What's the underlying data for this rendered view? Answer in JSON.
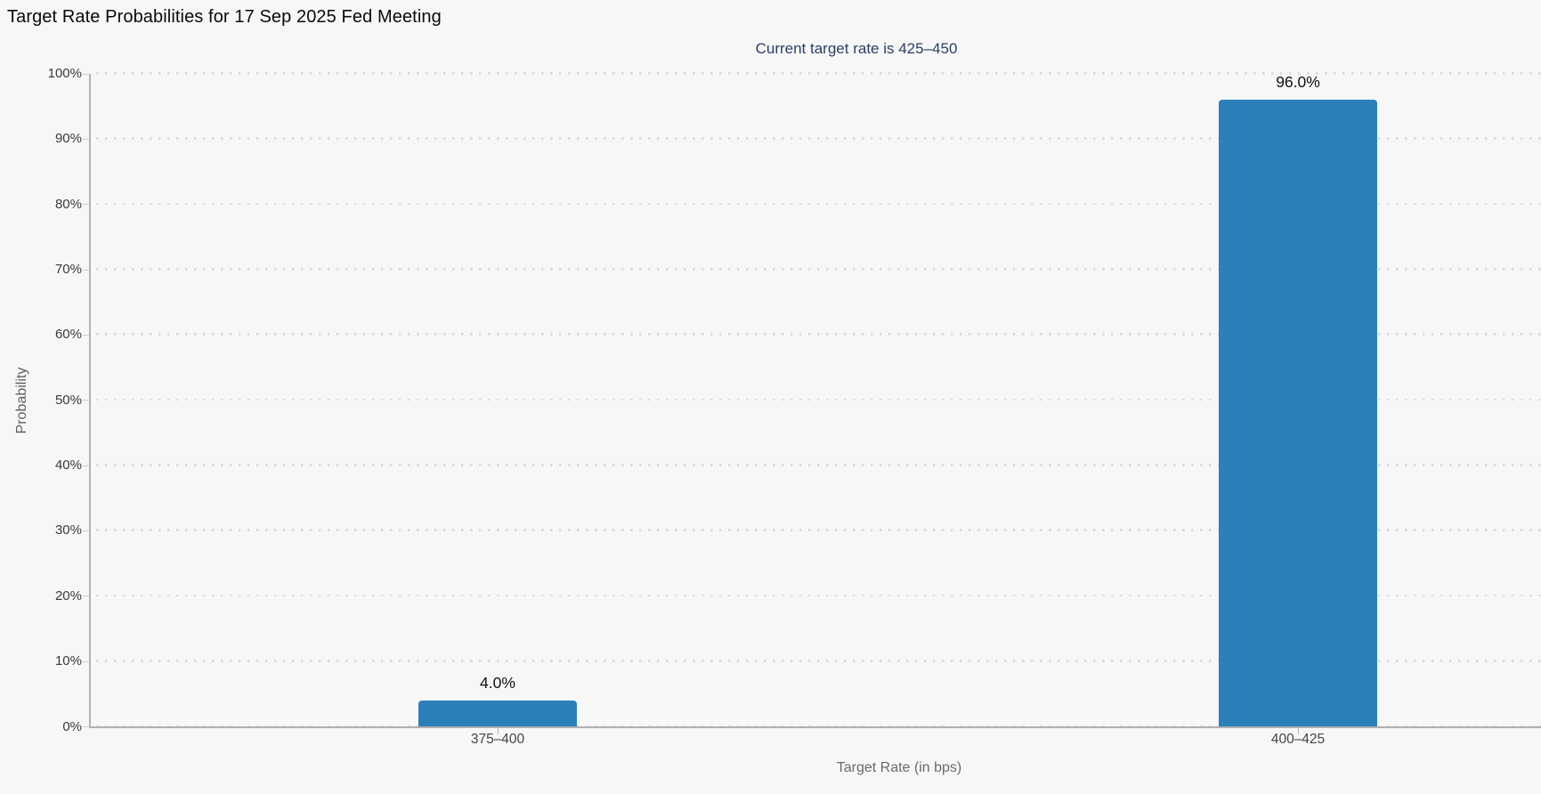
{
  "chart_data": {
    "type": "bar",
    "title": "Target Rate Probabilities for 17 Sep 2025 Fed Meeting",
    "subtitle": "Current target rate is 425–450",
    "categories": [
      "375–400",
      "400–425"
    ],
    "values": [
      4.0,
      96.0
    ],
    "value_labels": [
      "4.0%",
      "96.0%"
    ],
    "xlabel": "Target Rate (in bps)",
    "ylabel": "Probability",
    "ylim": [
      0,
      100
    ],
    "ytick_interval": 10,
    "ytick_labels": [
      "0%",
      "10%",
      "20%",
      "30%",
      "40%",
      "50%",
      "60%",
      "70%",
      "80%",
      "90%",
      "100%"
    ],
    "grid": "horizontal-dotted",
    "legend": "none",
    "colors": {
      "background": "#f7f7f7",
      "bar": "#2b80b9",
      "title": "#0a0a0a",
      "subtitle": "#2a3f63",
      "tick_label": "#3a3a3a",
      "category_label": "#454545",
      "value_label": "#0f0f0f",
      "axis_title": "#6b6b6b",
      "axis_line": "#b0b0b0",
      "grid_dot": "#dcdcdc"
    }
  }
}
